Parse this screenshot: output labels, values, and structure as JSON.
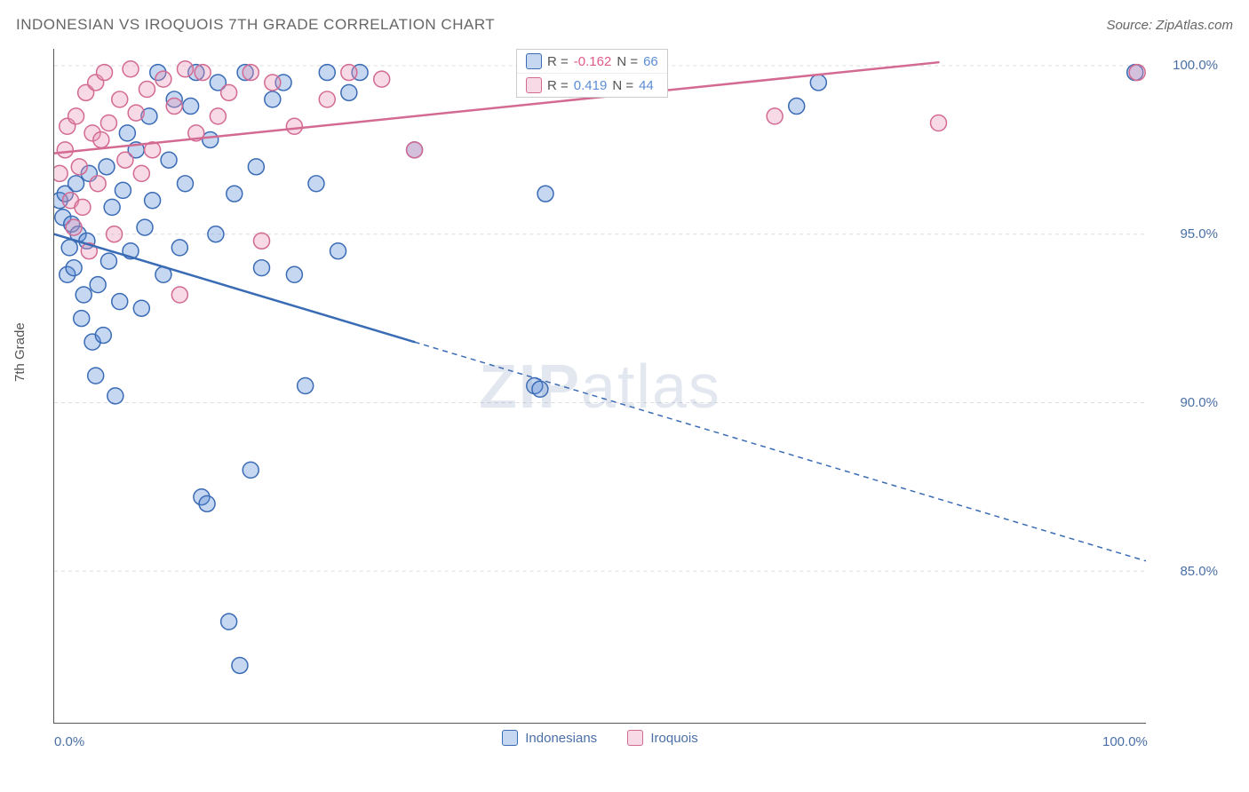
{
  "header": {
    "title": "INDONESIAN VS IROQUOIS 7TH GRADE CORRELATION CHART",
    "source": "Source: ZipAtlas.com"
  },
  "axes": {
    "ylabel": "7th Grade",
    "xlim": [
      0,
      100
    ],
    "ylim": [
      80.5,
      100.5
    ],
    "xticks_major": [
      0,
      100
    ],
    "xtick_labels": [
      "0.0%",
      "100.0%"
    ],
    "xticks_minor": [
      13,
      28,
      42,
      56,
      70,
      84
    ],
    "yticks": [
      85.0,
      90.0,
      95.0,
      100.0
    ],
    "ytick_labels": [
      "85.0%",
      "90.0%",
      "95.0%",
      "100.0%"
    ],
    "ytick_color": "#4a6fa5",
    "xtick_color": "#4a6fa5",
    "grid_color": "#dddddd",
    "axis_color": "#555555"
  },
  "legend_top": {
    "series1": {
      "label_r": "R = ",
      "r": "-0.162",
      "label_n": "   N = ",
      "n": "66",
      "r_color": "#e05a8a",
      "n_color": "#5b8dd6"
    },
    "series2": {
      "label_r": "R =  ",
      "r": "0.419",
      "label_n": "   N = ",
      "n": "44",
      "r_color": "#5b8dd6",
      "n_color": "#5b8dd6"
    }
  },
  "legend_bottom": {
    "series1": "Indonesians",
    "series2": "Iroquois"
  },
  "watermark": {
    "zip": "ZIP",
    "atlas": "atlas"
  },
  "chart": {
    "type": "scatter",
    "background_color": "#ffffff",
    "marker_radius": 9,
    "marker_stroke_width": 1.5,
    "marker_fill_opacity": 0.35,
    "line_width_solid": 2.5,
    "line_width_dash": 1.5,
    "dash_pattern": "6,5",
    "series": [
      {
        "name": "Indonesians",
        "color": "#5b8dd6",
        "stroke": "#3a6bb5",
        "trend_solid": {
          "x1": 0,
          "y1": 95.0,
          "x2": 33,
          "y2": 91.8
        },
        "trend_dash": {
          "x1": 33,
          "y1": 91.8,
          "x2": 100,
          "y2": 85.3
        },
        "points": [
          [
            0.5,
            96.0
          ],
          [
            0.8,
            95.5
          ],
          [
            1.0,
            96.2
          ],
          [
            1.2,
            93.8
          ],
          [
            1.4,
            94.6
          ],
          [
            1.6,
            95.3
          ],
          [
            1.8,
            94.0
          ],
          [
            2.0,
            96.5
          ],
          [
            2.2,
            95.0
          ],
          [
            2.5,
            92.5
          ],
          [
            2.7,
            93.2
          ],
          [
            3.0,
            94.8
          ],
          [
            3.2,
            96.8
          ],
          [
            3.5,
            91.8
          ],
          [
            3.8,
            90.8
          ],
          [
            4.0,
            93.5
          ],
          [
            4.5,
            92.0
          ],
          [
            4.8,
            97.0
          ],
          [
            5.0,
            94.2
          ],
          [
            5.3,
            95.8
          ],
          [
            5.6,
            90.2
          ],
          [
            6.0,
            93.0
          ],
          [
            6.3,
            96.3
          ],
          [
            6.7,
            98.0
          ],
          [
            7.0,
            94.5
          ],
          [
            7.5,
            97.5
          ],
          [
            8.0,
            92.8
          ],
          [
            8.3,
            95.2
          ],
          [
            8.7,
            98.5
          ],
          [
            9.0,
            96.0
          ],
          [
            9.5,
            99.8
          ],
          [
            10.0,
            93.8
          ],
          [
            10.5,
            97.2
          ],
          [
            11.0,
            99.0
          ],
          [
            11.5,
            94.6
          ],
          [
            12.0,
            96.5
          ],
          [
            12.5,
            98.8
          ],
          [
            13.0,
            99.8
          ],
          [
            13.5,
            87.2
          ],
          [
            14.0,
            87.0
          ],
          [
            14.3,
            97.8
          ],
          [
            14.8,
            95.0
          ],
          [
            15.0,
            99.5
          ],
          [
            16.0,
            83.5
          ],
          [
            16.5,
            96.2
          ],
          [
            17.0,
            82.2
          ],
          [
            17.5,
            99.8
          ],
          [
            18.0,
            88.0
          ],
          [
            18.5,
            97.0
          ],
          [
            19.0,
            94.0
          ],
          [
            20.0,
            99.0
          ],
          [
            21.0,
            99.5
          ],
          [
            22.0,
            93.8
          ],
          [
            23.0,
            90.5
          ],
          [
            24.0,
            96.5
          ],
          [
            25.0,
            99.8
          ],
          [
            26.0,
            94.5
          ],
          [
            27.0,
            99.2
          ],
          [
            28.0,
            99.8
          ],
          [
            33.0,
            97.5
          ],
          [
            44.0,
            90.5
          ],
          [
            44.5,
            90.4
          ],
          [
            45.0,
            96.2
          ],
          [
            68.0,
            98.8
          ],
          [
            70.0,
            99.5
          ],
          [
            99.0,
            99.8
          ]
        ]
      },
      {
        "name": "Iroquois",
        "color": "#e894b5",
        "stroke": "#d36a92",
        "trend_solid": {
          "x1": 0,
          "y1": 97.4,
          "x2": 81,
          "y2": 100.1
        },
        "trend_dash": null,
        "points": [
          [
            0.5,
            96.8
          ],
          [
            1.0,
            97.5
          ],
          [
            1.2,
            98.2
          ],
          [
            1.5,
            96.0
          ],
          [
            1.8,
            95.2
          ],
          [
            2.0,
            98.5
          ],
          [
            2.3,
            97.0
          ],
          [
            2.6,
            95.8
          ],
          [
            2.9,
            99.2
          ],
          [
            3.2,
            94.5
          ],
          [
            3.5,
            98.0
          ],
          [
            3.8,
            99.5
          ],
          [
            4.0,
            96.5
          ],
          [
            4.3,
            97.8
          ],
          [
            4.6,
            99.8
          ],
          [
            5.0,
            98.3
          ],
          [
            5.5,
            95.0
          ],
          [
            6.0,
            99.0
          ],
          [
            6.5,
            97.2
          ],
          [
            7.0,
            99.9
          ],
          [
            7.5,
            98.6
          ],
          [
            8.0,
            96.8
          ],
          [
            8.5,
            99.3
          ],
          [
            9.0,
            97.5
          ],
          [
            10.0,
            99.6
          ],
          [
            11.0,
            98.8
          ],
          [
            11.5,
            93.2
          ],
          [
            12.0,
            99.9
          ],
          [
            13.0,
            98.0
          ],
          [
            13.6,
            99.8
          ],
          [
            15.0,
            98.5
          ],
          [
            16.0,
            99.2
          ],
          [
            18.0,
            99.8
          ],
          [
            19.0,
            94.8
          ],
          [
            20.0,
            99.5
          ],
          [
            22.0,
            98.2
          ],
          [
            25.0,
            99.0
          ],
          [
            27.0,
            99.8
          ],
          [
            30.0,
            99.6
          ],
          [
            33.0,
            97.5
          ],
          [
            55.0,
            99.5
          ],
          [
            66.0,
            98.5
          ],
          [
            81.0,
            98.3
          ],
          [
            99.2,
            99.8
          ]
        ]
      }
    ]
  }
}
